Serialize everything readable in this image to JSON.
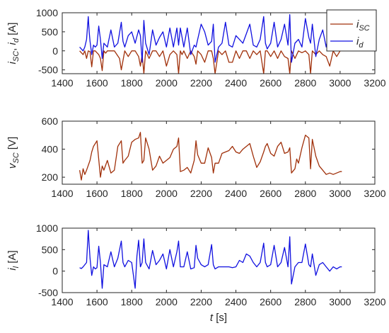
{
  "chart_data": [
    {
      "type": "line",
      "ylabel_parts": [
        "i",
        "SC",
        ", ",
        "i",
        "d",
        " [A]"
      ],
      "xlim": [
        1400,
        3200
      ],
      "ylim": [
        -600,
        1000
      ],
      "xticks": [
        1400,
        1600,
        1800,
        2000,
        2200,
        2400,
        2600,
        2800,
        3000,
        3200
      ],
      "yticks": [
        -500,
        0,
        500,
        1000
      ],
      "legend_position": "top-right",
      "legend": [
        {
          "sym": "i",
          "sub": "SC"
        },
        {
          "sym": "i",
          "sub": "d"
        }
      ],
      "series": [
        {
          "name": "iSC",
          "color": "#a0300a",
          "x": [
            1500,
            1520,
            1530,
            1540,
            1550,
            1560,
            1570,
            1580,
            1590,
            1600,
            1610,
            1620,
            1630,
            1640,
            1650,
            1660,
            1700,
            1730,
            1740,
            1760,
            1780,
            1800,
            1820,
            1840,
            1850,
            1860,
            1870,
            1880,
            1900,
            1920,
            1940,
            1960,
            1980,
            2000,
            2020,
            2040,
            2060,
            2070,
            2080,
            2090,
            2100,
            2120,
            2140,
            2160,
            2170,
            2180,
            2200,
            2220,
            2240,
            2260,
            2270,
            2280,
            2300,
            2320,
            2340,
            2360,
            2380,
            2400,
            2420,
            2440,
            2460,
            2480,
            2500,
            2520,
            2540,
            2560,
            2570,
            2580,
            2600,
            2620,
            2640,
            2660,
            2680,
            2700,
            2710,
            2720,
            2740,
            2760,
            2780,
            2800,
            2820,
            2830,
            2840,
            2860,
            2880,
            2900,
            2920,
            2940,
            2960,
            2980,
            3000,
            3010
          ],
          "y": [
            0,
            -100,
            0,
            -200,
            0,
            -20,
            -420,
            0,
            0,
            -50,
            -100,
            -200,
            -520,
            0,
            -60,
            0,
            0,
            -200,
            -500,
            0,
            -150,
            0,
            0,
            -150,
            -400,
            -100,
            -600,
            0,
            -200,
            0,
            0,
            -150,
            0,
            -400,
            -100,
            0,
            -100,
            -600,
            0,
            -100,
            0,
            -200,
            0,
            -150,
            -350,
            0,
            -100,
            -300,
            0,
            0,
            -200,
            -600,
            0,
            -100,
            0,
            -300,
            -300,
            0,
            -200,
            0,
            0,
            -200,
            0,
            -100,
            0,
            -600,
            0,
            0,
            -150,
            0,
            -200,
            0,
            -150,
            -200,
            -600,
            0,
            -200,
            0,
            -50,
            0,
            -100,
            -600,
            0,
            -100,
            0,
            -100,
            -150,
            -400,
            0,
            -150,
            0,
            0
          ]
        },
        {
          "name": "id",
          "color": "#1010e0",
          "x": [
            1500,
            1520,
            1530,
            1540,
            1550,
            1555,
            1560,
            1570,
            1580,
            1590,
            1600,
            1610,
            1620,
            1630,
            1640,
            1660,
            1680,
            1700,
            1720,
            1740,
            1750,
            1760,
            1780,
            1800,
            1820,
            1840,
            1850,
            1860,
            1870,
            1880,
            1900,
            1920,
            1940,
            1960,
            1980,
            2000,
            2020,
            2040,
            2060,
            2070,
            2080,
            2100,
            2120,
            2140,
            2160,
            2170,
            2180,
            2200,
            2220,
            2240,
            2260,
            2270,
            2280,
            2300,
            2320,
            2340,
            2360,
            2380,
            2400,
            2420,
            2440,
            2460,
            2480,
            2500,
            2520,
            2540,
            2560,
            2570,
            2580,
            2600,
            2620,
            2640,
            2660,
            2680,
            2700,
            2710,
            2720,
            2740,
            2760,
            2780,
            2800,
            2820,
            2830,
            2840,
            2860,
            2880,
            2900,
            2920,
            2940,
            2960,
            2980,
            3000,
            3010
          ],
          "y": [
            100,
            0,
            100,
            300,
            900,
            500,
            250,
            -100,
            150,
            100,
            150,
            650,
            300,
            -200,
            200,
            100,
            550,
            100,
            200,
            750,
            250,
            100,
            400,
            500,
            200,
            550,
            400,
            -300,
            800,
            200,
            -100,
            550,
            150,
            350,
            500,
            100,
            600,
            100,
            600,
            150,
            600,
            100,
            600,
            -100,
            150,
            100,
            300,
            700,
            500,
            150,
            250,
            700,
            -300,
            100,
            200,
            750,
            150,
            100,
            400,
            300,
            200,
            450,
            700,
            150,
            100,
            300,
            900,
            200,
            50,
            200,
            750,
            100,
            300,
            700,
            150,
            950,
            -300,
            200,
            300,
            100,
            850,
            350,
            200,
            700,
            -150,
            300,
            550,
            100,
            650,
            100,
            200,
            150,
            300
          ]
        }
      ]
    },
    {
      "type": "line",
      "ylabel_parts": [
        "v",
        "SC",
        "",
        "",
        "",
        " [V]"
      ],
      "xlim": [
        1400,
        3200
      ],
      "ylim": [
        150,
        600
      ],
      "xticks": [
        1400,
        1600,
        1800,
        2000,
        2200,
        2400,
        2600,
        2800,
        3000,
        3200
      ],
      "yticks": [
        200,
        400,
        600
      ],
      "series": [
        {
          "name": "vSC",
          "color": "#a0300a",
          "x": [
            1500,
            1510,
            1520,
            1530,
            1540,
            1560,
            1570,
            1580,
            1600,
            1620,
            1630,
            1640,
            1660,
            1680,
            1700,
            1720,
            1740,
            1750,
            1760,
            1780,
            1800,
            1820,
            1840,
            1850,
            1860,
            1870,
            1880,
            1900,
            1920,
            1940,
            1960,
            1980,
            2000,
            2020,
            2040,
            2060,
            2070,
            2080,
            2100,
            2120,
            2140,
            2160,
            2170,
            2180,
            2200,
            2220,
            2240,
            2260,
            2270,
            2280,
            2300,
            2320,
            2340,
            2360,
            2380,
            2400,
            2420,
            2440,
            2460,
            2480,
            2500,
            2520,
            2540,
            2560,
            2570,
            2580,
            2600,
            2620,
            2640,
            2660,
            2680,
            2700,
            2710,
            2720,
            2740,
            2750,
            2760,
            2780,
            2800,
            2820,
            2830,
            2840,
            2860,
            2880,
            2900,
            2920,
            2940,
            2960,
            2980,
            3000,
            3010
          ],
          "y": [
            250,
            180,
            260,
            220,
            250,
            320,
            380,
            420,
            460,
            200,
            280,
            250,
            320,
            230,
            250,
            420,
            460,
            300,
            320,
            350,
            450,
            470,
            480,
            520,
            300,
            320,
            480,
            400,
            250,
            280,
            350,
            300,
            320,
            340,
            400,
            420,
            480,
            240,
            250,
            270,
            230,
            320,
            460,
            360,
            300,
            300,
            410,
            340,
            230,
            300,
            300,
            370,
            380,
            390,
            420,
            380,
            370,
            400,
            420,
            440,
            350,
            270,
            310,
            380,
            420,
            440,
            370,
            350,
            420,
            450,
            370,
            380,
            410,
            230,
            260,
            330,
            300,
            410,
            500,
            480,
            260,
            470,
            350,
            280,
            250,
            220,
            230,
            220,
            230,
            240,
            240
          ]
        }
      ]
    },
    {
      "type": "line",
      "ylabel_parts": [
        "i",
        "l",
        "",
        "",
        "",
        " [A]"
      ],
      "xlabel_parts": [
        "t",
        " [s]"
      ],
      "xlim": [
        1400,
        3200
      ],
      "ylim": [
        -500,
        1000
      ],
      "xticks": [
        1400,
        1600,
        1800,
        2000,
        2200,
        2400,
        2600,
        2800,
        3000,
        3200
      ],
      "yticks": [
        -500,
        0,
        500,
        1000
      ],
      "series": [
        {
          "name": "il",
          "color": "#1010e0",
          "x": [
            1500,
            1510,
            1520,
            1530,
            1540,
            1550,
            1555,
            1560,
            1570,
            1580,
            1590,
            1600,
            1610,
            1620,
            1630,
            1640,
            1660,
            1680,
            1700,
            1720,
            1740,
            1750,
            1760,
            1780,
            1800,
            1820,
            1830,
            1840,
            1850,
            1860,
            1870,
            1880,
            1900,
            1920,
            1940,
            1960,
            1980,
            2000,
            2020,
            2040,
            2060,
            2070,
            2080,
            2100,
            2120,
            2140,
            2160,
            2170,
            2180,
            2200,
            2220,
            2240,
            2260,
            2270,
            2280,
            2300,
            2320,
            2340,
            2360,
            2380,
            2400,
            2420,
            2440,
            2460,
            2480,
            2500,
            2520,
            2540,
            2560,
            2570,
            2580,
            2600,
            2620,
            2640,
            2660,
            2680,
            2700,
            2710,
            2720,
            2740,
            2760,
            2780,
            2800,
            2820,
            2830,
            2840,
            2860,
            2880,
            2900,
            2920,
            2940,
            2960,
            2980,
            3000,
            3010
          ],
          "y": [
            80,
            60,
            100,
            150,
            200,
            950,
            600,
            300,
            -100,
            100,
            50,
            80,
            580,
            200,
            -400,
            150,
            100,
            450,
            100,
            300,
            700,
            200,
            100,
            250,
            200,
            -400,
            350,
            720,
            100,
            200,
            750,
            200,
            50,
            480,
            150,
            250,
            400,
            50,
            500,
            100,
            450,
            700,
            100,
            100,
            450,
            50,
            80,
            600,
            300,
            150,
            100,
            150,
            620,
            150,
            50,
            100,
            100,
            100,
            100,
            80,
            100,
            250,
            200,
            400,
            350,
            200,
            100,
            200,
            650,
            200,
            100,
            150,
            600,
            100,
            200,
            550,
            100,
            800,
            -300,
            100,
            200,
            200,
            630,
            150,
            100,
            400,
            -100,
            150,
            200,
            100,
            0,
            100,
            50,
            100,
            100
          ]
        }
      ]
    }
  ]
}
